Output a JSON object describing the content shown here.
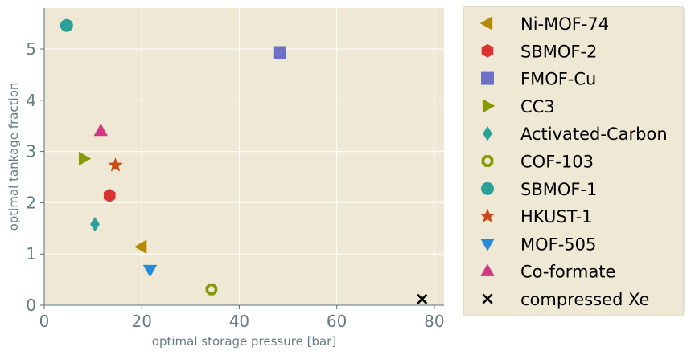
{
  "chart_data": {
    "type": "scatter",
    "title": "",
    "xlabel": "optimal storage pressure [bar]",
    "ylabel": "optimal tankage fraction",
    "xlim": [
      0,
      82
    ],
    "ylim": [
      0,
      5.8
    ],
    "xticks": [
      0,
      20,
      40,
      60,
      80
    ],
    "yticks": [
      0,
      1,
      2,
      3,
      4,
      5
    ],
    "grid": true,
    "legend_position": "outside-right",
    "background_color": "#eee8d5",
    "series": [
      {
        "name": "Ni-MOF-74",
        "marker": "triangle-left",
        "color": "#b58900",
        "x": [
          20.0
        ],
        "y": [
          1.14
        ]
      },
      {
        "name": "SBMOF-2",
        "marker": "hexagon",
        "color": "#dc322f",
        "x": [
          13.4
        ],
        "y": [
          2.14
        ]
      },
      {
        "name": "FMOF-Cu",
        "marker": "square",
        "color": "#6c71c4",
        "x": [
          48.3
        ],
        "y": [
          4.93
        ]
      },
      {
        "name": "CC3",
        "marker": "triangle-right",
        "color": "#859900",
        "x": [
          8.1
        ],
        "y": [
          2.86
        ]
      },
      {
        "name": "Activated-Carbon",
        "marker": "thin-diamond",
        "color": "#2aa198",
        "x": [
          10.4
        ],
        "y": [
          1.58
        ]
      },
      {
        "name": "COF-103",
        "marker": "octagon-ring",
        "color": "#859900",
        "x": [
          34.3
        ],
        "y": [
          0.31
        ]
      },
      {
        "name": "SBMOF-1",
        "marker": "circle",
        "color": "#2aa198",
        "x": [
          4.6
        ],
        "y": [
          5.46
        ]
      },
      {
        "name": "HKUST-1",
        "marker": "star",
        "color": "#cb4b16",
        "x": [
          14.6
        ],
        "y": [
          2.73
        ]
      },
      {
        "name": "MOF-505",
        "marker": "triangle-down",
        "color": "#268bd2",
        "x": [
          21.7
        ],
        "y": [
          0.69
        ]
      },
      {
        "name": "Co-formate",
        "marker": "triangle-up",
        "color": "#d33682",
        "x": [
          11.6
        ],
        "y": [
          3.4
        ]
      },
      {
        "name": "compressed Xe",
        "marker": "x",
        "color": "#000000",
        "x": [
          77.5
        ],
        "y": [
          0.12
        ]
      }
    ]
  }
}
